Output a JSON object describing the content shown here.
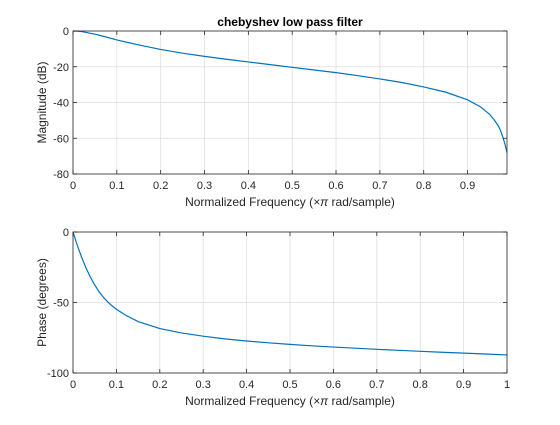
{
  "colors": {
    "line": "#0072bd",
    "grid": "#dfdfdf",
    "axes": "#262626",
    "background": "#ffffff"
  },
  "chart_data": [
    {
      "type": "line",
      "title": "chebyshev low pass filter",
      "xlabel_prefix": "Normalized Frequency  (",
      "xlabel_math": "×π",
      "xlabel_suffix": " rad/sample)",
      "ylabel": "Magnitude (dB)",
      "xlim": [
        0,
        0.99
      ],
      "ylim": [
        -80,
        0
      ],
      "xticks": [
        0,
        0.1,
        0.2,
        0.3,
        0.4,
        0.5,
        0.6,
        0.7,
        0.8,
        0.9
      ],
      "xtick_labels": [
        "0",
        "0.1",
        "0.2",
        "0.3",
        "0.4",
        "0.5",
        "0.6",
        "0.7",
        "0.8",
        "0.9"
      ],
      "yticks": [
        0,
        -20,
        -40,
        -60,
        -80
      ],
      "ytick_labels": [
        "0",
        "-20",
        "-40",
        "-60",
        "-80"
      ],
      "grid": true,
      "series": [
        {
          "x": [
            0,
            0.01,
            0.02,
            0.03,
            0.05,
            0.07,
            0.1,
            0.15,
            0.2,
            0.25,
            0.3,
            0.35,
            0.4,
            0.45,
            0.5,
            0.55,
            0.6,
            0.65,
            0.7,
            0.75,
            0.8,
            0.85,
            0.9,
            0.93,
            0.95,
            0.96,
            0.97,
            0.975,
            0.98,
            0.985,
            0.99
          ],
          "y": [
            0,
            -0.1,
            -0.3,
            -0.8,
            -1.8,
            -3,
            -5,
            -7.8,
            -10.3,
            -12.4,
            -14.2,
            -15.8,
            -17.3,
            -18.8,
            -20.3,
            -21.8,
            -23.3,
            -25,
            -26.8,
            -28.8,
            -31.3,
            -34.2,
            -38.5,
            -42.5,
            -46.5,
            -49.5,
            -53,
            -55.5,
            -59,
            -63,
            -68
          ]
        }
      ]
    },
    {
      "type": "line",
      "title": "",
      "xlabel_prefix": "Normalized Frequency  (",
      "xlabel_math": "×π",
      "xlabel_suffix": " rad/sample)",
      "ylabel": "Phase (degrees)",
      "xlim": [
        0,
        1
      ],
      "ylim": [
        -100,
        0
      ],
      "xticks": [
        0,
        0.1,
        0.2,
        0.3,
        0.4,
        0.5,
        0.6,
        0.7,
        0.8,
        0.9,
        1
      ],
      "xtick_labels": [
        "0",
        "0.1",
        "0.2",
        "0.3",
        "0.4",
        "0.5",
        "0.6",
        "0.7",
        "0.8",
        "0.9",
        "1"
      ],
      "yticks": [
        0,
        -50,
        -100
      ],
      "ytick_labels": [
        "0",
        "-50",
        "-100"
      ],
      "grid": true,
      "series": [
        {
          "x": [
            0,
            0.01,
            0.02,
            0.03,
            0.04,
            0.05,
            0.06,
            0.07,
            0.08,
            0.09,
            0.1,
            0.12,
            0.15,
            0.2,
            0.25,
            0.3,
            0.35,
            0.4,
            0.45,
            0.5,
            0.55,
            0.6,
            0.65,
            0.7,
            0.75,
            0.8,
            0.85,
            0.9,
            0.95,
            1
          ],
          "y": [
            0,
            -9.5,
            -18,
            -25.5,
            -32,
            -37.5,
            -42.3,
            -46.3,
            -49.6,
            -52.4,
            -54.8,
            -58.8,
            -63.5,
            -68.5,
            -71.6,
            -73.9,
            -75.8,
            -77.3,
            -78.6,
            -79.7,
            -80.7,
            -81.6,
            -82.4,
            -83.2,
            -83.9,
            -84.6,
            -85.3,
            -85.9,
            -86.5,
            -87.2
          ]
        }
      ]
    }
  ]
}
